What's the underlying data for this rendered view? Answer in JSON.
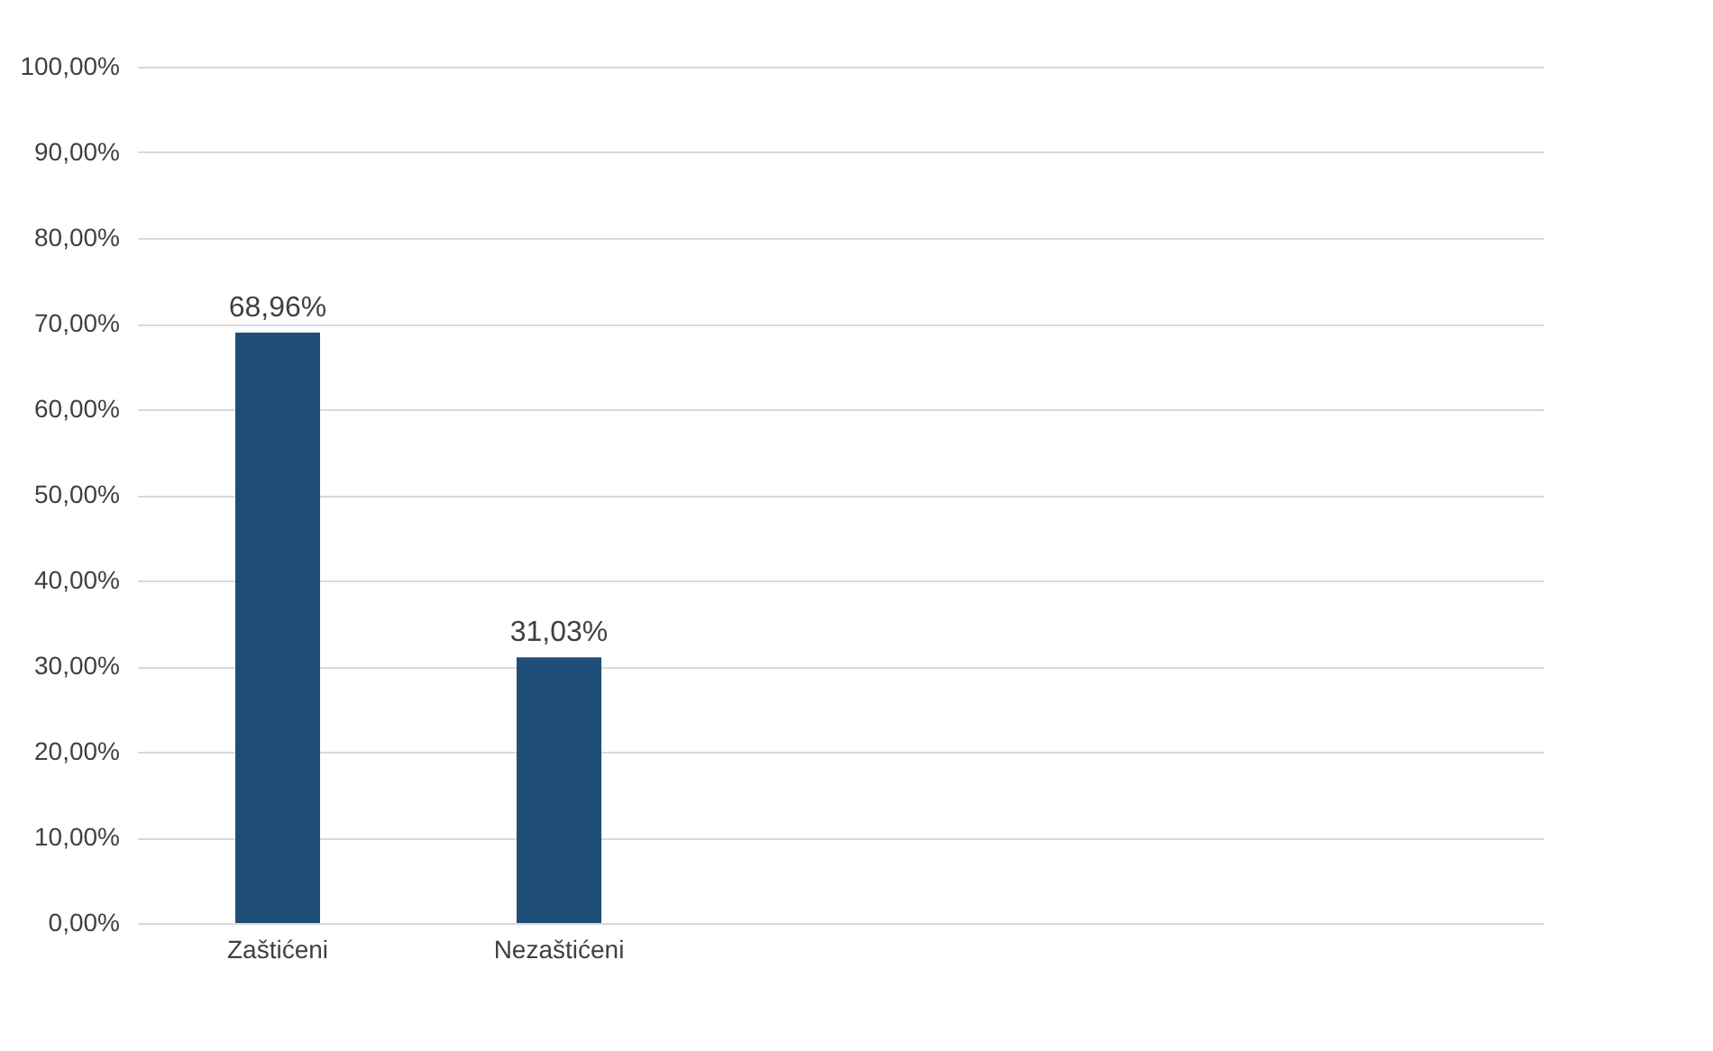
{
  "chart_data": {
    "type": "bar",
    "categories": [
      "Zaštićeni",
      "Nezaštićeni",
      null,
      null,
      null
    ],
    "values": [
      68.96,
      31.03,
      null,
      null,
      null
    ],
    "value_labels": [
      "68,96%",
      "31,03%",
      null,
      null,
      null
    ],
    "color": "#1f4e79",
    "ylim": [
      0,
      100
    ],
    "yticks": [
      {
        "value": 0,
        "label": "0,00%"
      },
      {
        "value": 10,
        "label": "10,00%"
      },
      {
        "value": 20,
        "label": "20,00%"
      },
      {
        "value": 30,
        "label": "30,00%"
      },
      {
        "value": 40,
        "label": "40,00%"
      },
      {
        "value": 50,
        "label": "50,00%"
      },
      {
        "value": 60,
        "label": "60,00%"
      },
      {
        "value": 70,
        "label": "70,00%"
      },
      {
        "value": 80,
        "label": "80,00%"
      },
      {
        "value": 90,
        "label": "90,00%"
      },
      {
        "value": 100,
        "label": "100,00%"
      }
    ],
    "grid": "y"
  }
}
